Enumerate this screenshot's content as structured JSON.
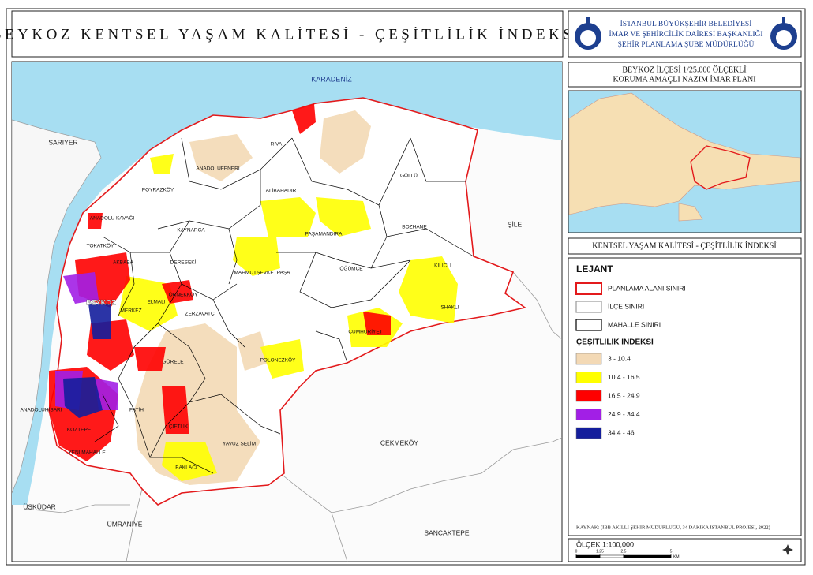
{
  "title": "BEYKOZ KENTSEL YAŞAM KALİTESİ - ÇEŞİTLİLİK İNDEKSİ",
  "header": {
    "lines": [
      "İSTANBUL BÜYÜKŞEHİR BELEDİYESİ",
      "İMAR VE ŞEHİRCİLİK DAİRESİ BAŞKANLIĞI",
      "ŞEHİR PLANLAMA ŞUBE MÜDÜRLÜĞÜ"
    ]
  },
  "plan": {
    "lines": [
      "BEYKOZ İLÇESİ 1/25.000 ÖLÇEKLİ",
      "KORUMA AMAÇLI NAZIM İMAR PLANI"
    ]
  },
  "section_title": "KENTSEL YAŞAM KALİTESİ - ÇEŞİTLİLİK İNDEKSİ",
  "map": {
    "sea": "KARADENİZ",
    "districts": [
      "SARIYER",
      "ŞİLE",
      "ÇEKMEKÖY",
      "ÜSKÜDAR",
      "ÜMRANİYE",
      "SANCAKTEPE",
      "BEYKOZ"
    ],
    "neighbourhoods": [
      "RİVA",
      "ANADOLUFENERİ",
      "GÖLLÜ",
      "POYRAZKÖY",
      "ALİBAHADIR",
      "ANADOLU KAVAĞI",
      "KAYNARCA",
      "BOZHANE",
      "PAŞAMANDIRA",
      "TOKATKÖY",
      "AKBABA",
      "DERESEKİ",
      "ÖĞÜMCE",
      "KILICLI",
      "MAHMUTŞEVKETPAŞA",
      "ELMALI",
      "ÖRNEKKÖY",
      "İSHAKLI",
      "MERKEZ",
      "ZERZAVATÇI",
      "CUMHURİYET",
      "POLONEZKÖY",
      "GÖRELE",
      "ÇİFTLİK",
      "YAVUZ SELİM",
      "BAKLACI",
      "FATİH",
      "KOZTEPE",
      "YENİ MAHALLE",
      "ANADOLUHİSARI"
    ]
  },
  "legend": {
    "title": "LEJANT",
    "boundaries": [
      {
        "label": "PLANLAMA ALANI SINIRI",
        "color": "#e31a1c"
      },
      {
        "label": "İLÇE SINIRI",
        "color": "#9a9a9a"
      },
      {
        "label": "MAHALLE SINIRI",
        "color": "#000000"
      }
    ],
    "index_title": "ÇEŞİTLİLİK İNDEKSİ",
    "classes": [
      {
        "label": "3 - 10.4",
        "color": "#f3d9b5"
      },
      {
        "label": "10.4 - 16.5",
        "color": "#ffff00"
      },
      {
        "label": "16.5 - 24.9",
        "color": "#ff0000"
      },
      {
        "label": "24.9 - 34.4",
        "color": "#a21fe6"
      },
      {
        "label": "34.4 - 46",
        "color": "#141e9c"
      }
    ]
  },
  "source": "KAYNAK: (İBB AKILLI ŞEHİR MÜDÜRLÜĞÜ, 34 DAKİKA İSTANBUL PROJESİ, 2022)",
  "scale": {
    "label": "ÖLÇEK 1:100,000",
    "ticks": [
      0,
      1.25,
      2.5,
      5
    ],
    "unit": "KM"
  }
}
